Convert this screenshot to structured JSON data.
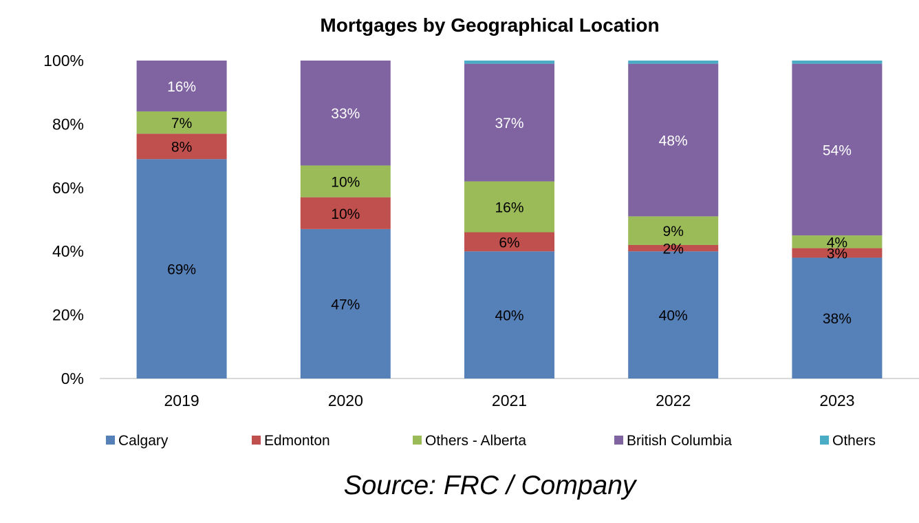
{
  "chart_data": {
    "type": "bar",
    "stacked": true,
    "title": "Mortgages by Geographical Location",
    "xlabel": "",
    "ylabel": "",
    "ylim": [
      0,
      100
    ],
    "yticks": [
      "0%",
      "20%",
      "40%",
      "60%",
      "80%",
      "100%"
    ],
    "categories": [
      "2019",
      "2020",
      "2021",
      "2022",
      "2023"
    ],
    "series": [
      {
        "name": "Calgary",
        "color": "#5580B8",
        "values": [
          69,
          47,
          40,
          40,
          38
        ],
        "labels": [
          "69%",
          "47%",
          "40%",
          "40%",
          "38%"
        ]
      },
      {
        "name": "Edmonton",
        "color": "#C0504D",
        "values": [
          8,
          10,
          6,
          2,
          3
        ],
        "labels": [
          "8%",
          "10%",
          "6%",
          "2%",
          "3%"
        ]
      },
      {
        "name": "Others - Alberta",
        "color": "#9BBB59",
        "values": [
          7,
          10,
          16,
          9,
          4
        ],
        "labels": [
          "7%",
          "10%",
          "16%",
          "9%",
          "4%"
        ]
      },
      {
        "name": "British Columbia",
        "color": "#8064A2",
        "values": [
          16,
          33,
          37,
          48,
          54
        ],
        "labels": [
          "16%",
          "33%",
          "37%",
          "48%",
          "54%"
        ]
      },
      {
        "name": "Others",
        "color": "#4BACC6",
        "values": [
          0,
          0,
          1,
          1,
          1
        ],
        "labels": [
          "",
          "",
          "",
          "",
          ""
        ]
      }
    ],
    "label_colors": [
      "#000000",
      "#000000",
      "#000000",
      "#ffffff",
      "#000000"
    ],
    "grid": false,
    "legend_position": "bottom"
  },
  "source_note": "Source: FRC / Company"
}
